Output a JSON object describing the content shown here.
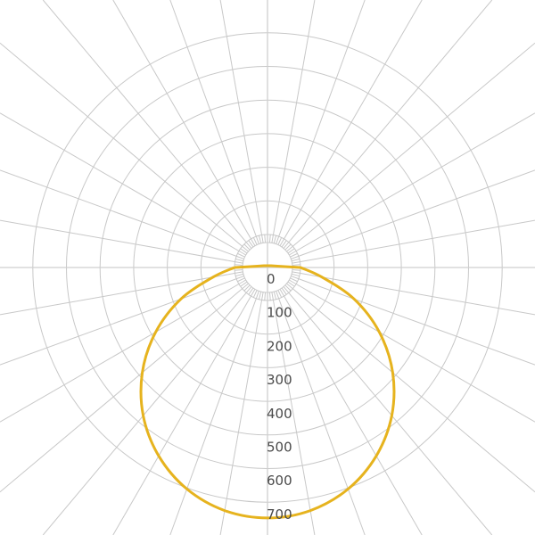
{
  "chart_data": {
    "type": "polar-line",
    "title": "",
    "radial_ticks": [
      "0",
      "100",
      "200",
      "300",
      "400",
      "500",
      "600",
      "700"
    ],
    "radial_range": [
      0,
      700
    ],
    "angular_grid_step_deg": 10,
    "grid": true,
    "colors": {
      "grid": "#c8c8c8",
      "curve": "#e6b31e",
      "text": "#4a4a4a"
    },
    "series": [
      {
        "angles_deg_from_nadir": [
          -90,
          -80,
          -70,
          -60,
          -50,
          -40,
          -30,
          -20,
          -10,
          0,
          10,
          20,
          30,
          40,
          50,
          60,
          70,
          80,
          90
        ],
        "values": [
          0,
          66,
          176,
          286,
          388,
          477,
          549,
          603,
          636,
          647,
          636,
          603,
          549,
          477,
          388,
          286,
          176,
          66,
          0
        ]
      }
    ]
  }
}
